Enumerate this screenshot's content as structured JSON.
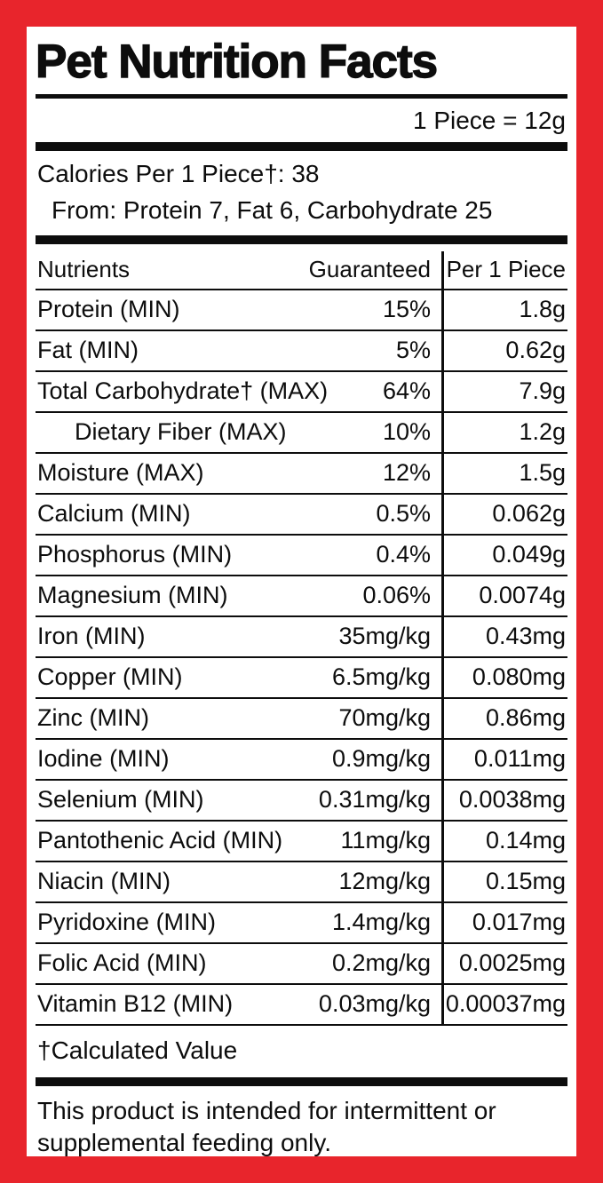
{
  "colors": {
    "frame_red": "#e8252c",
    "ink_black": "#0d0d0d",
    "background_white": "#ffffff"
  },
  "label": {
    "title": "Pet Nutrition Facts",
    "serving": "1 Piece = 12g",
    "calories_line": "Calories Per 1 Piece†: 38",
    "calories_from": "From: Protein 7, Fat 6, Carbohydrate 25",
    "footnote": "†Calculated Value",
    "disclaimer": "This product is intended for intermittent or supplemental feeding only."
  },
  "table": {
    "headers": {
      "nutrients": "Nutrients",
      "guaranteed": "Guaranteed",
      "per_piece": "Per 1 Piece"
    },
    "rows": [
      {
        "name": "Protein (MIN)",
        "guaranteed": "15%",
        "per_piece": "1.8g",
        "indent": false
      },
      {
        "name": "Fat (MIN)",
        "guaranteed": "5%",
        "per_piece": "0.62g",
        "indent": false
      },
      {
        "name": "Total Carbohydrate† (MAX)",
        "guaranteed": "64%",
        "per_piece": "7.9g",
        "indent": false
      },
      {
        "name": "Dietary Fiber (MAX)",
        "guaranteed": "10%",
        "per_piece": "1.2g",
        "indent": true
      },
      {
        "name": "Moisture (MAX)",
        "guaranteed": "12%",
        "per_piece": "1.5g",
        "indent": false
      },
      {
        "name": "Calcium (MIN)",
        "guaranteed": "0.5%",
        "per_piece": "0.062g",
        "indent": false
      },
      {
        "name": "Phosphorus (MIN)",
        "guaranteed": "0.4%",
        "per_piece": "0.049g",
        "indent": false
      },
      {
        "name": "Magnesium (MIN)",
        "guaranteed": "0.06%",
        "per_piece": "0.0074g",
        "indent": false
      },
      {
        "name": "Iron (MIN)",
        "guaranteed": "35mg/kg",
        "per_piece": "0.43mg",
        "indent": false
      },
      {
        "name": "Copper (MIN)",
        "guaranteed": "6.5mg/kg",
        "per_piece": "0.080mg",
        "indent": false
      },
      {
        "name": "Zinc (MIN)",
        "guaranteed": "70mg/kg",
        "per_piece": "0.86mg",
        "indent": false
      },
      {
        "name": "Iodine (MIN)",
        "guaranteed": "0.9mg/kg",
        "per_piece": "0.011mg",
        "indent": false
      },
      {
        "name": "Selenium (MIN)",
        "guaranteed": "0.31mg/kg",
        "per_piece": "0.0038mg",
        "indent": false
      },
      {
        "name": "Pantothenic Acid (MIN)",
        "guaranteed": "11mg/kg",
        "per_piece": "0.14mg",
        "indent": false
      },
      {
        "name": "Niacin (MIN)",
        "guaranteed": "12mg/kg",
        "per_piece": "0.15mg",
        "indent": false
      },
      {
        "name": "Pyridoxine (MIN)",
        "guaranteed": "1.4mg/kg",
        "per_piece": "0.017mg",
        "indent": false
      },
      {
        "name": "Folic Acid (MIN)",
        "guaranteed": "0.2mg/kg",
        "per_piece": "0.0025mg",
        "indent": false
      },
      {
        "name": "Vitamin B12 (MIN)",
        "guaranteed": "0.03mg/kg",
        "per_piece": "0.00037mg",
        "indent": false
      }
    ]
  }
}
